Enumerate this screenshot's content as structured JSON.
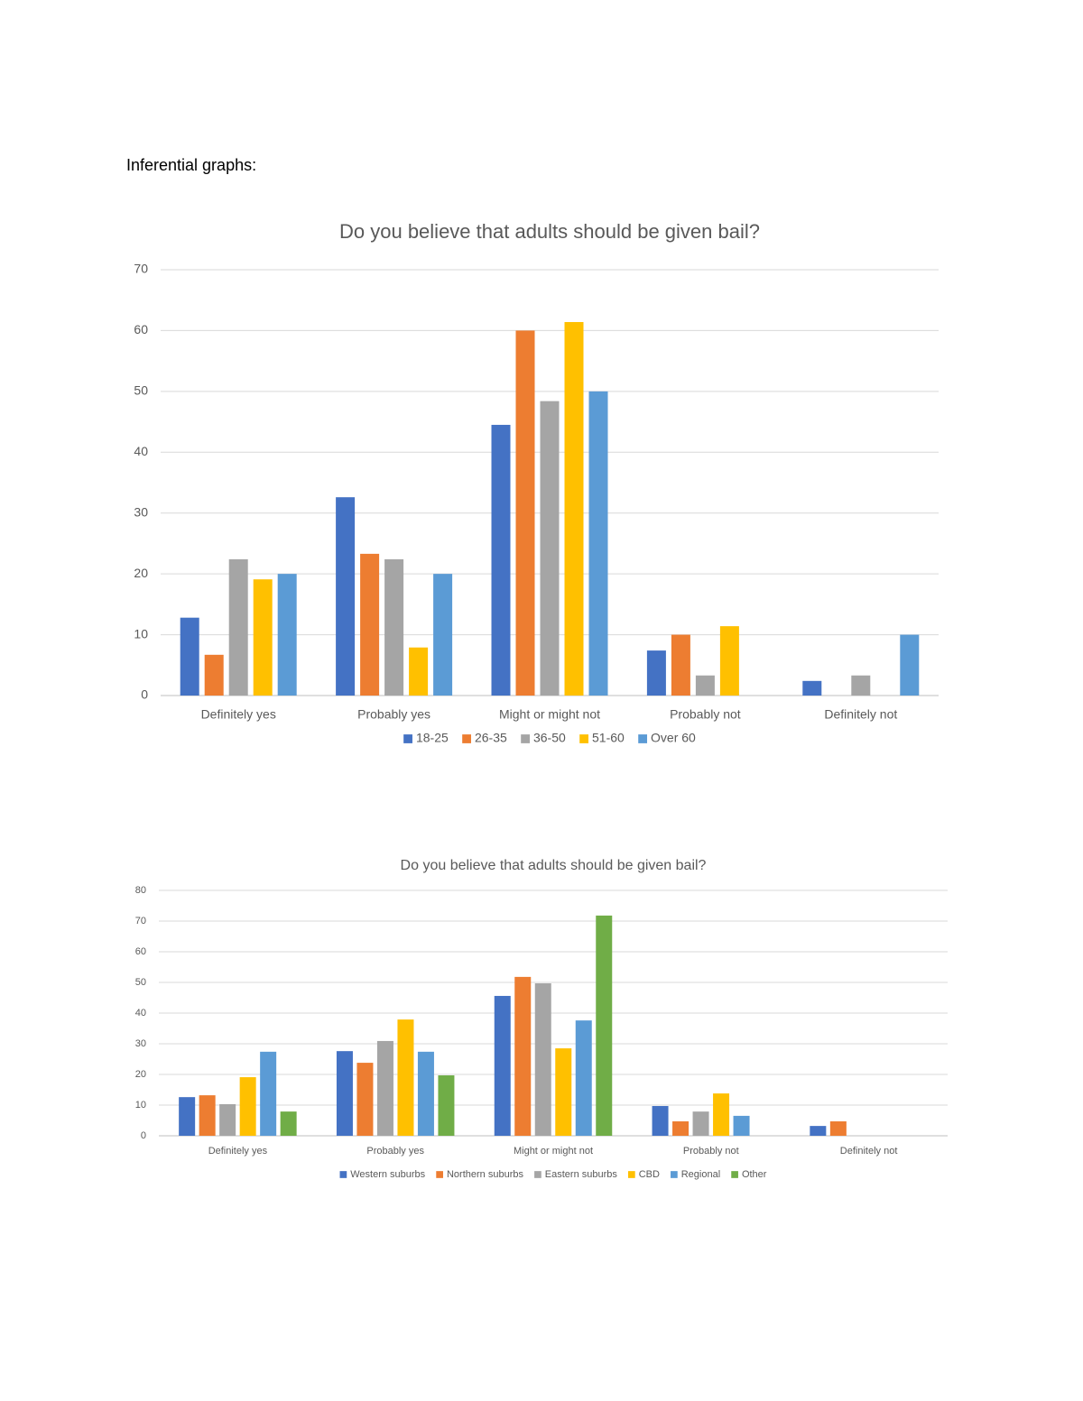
{
  "heading": "Inferential graphs:",
  "chart_data": [
    {
      "type": "bar",
      "title": "Do you believe that adults should be given bail?",
      "categories": [
        "Definitely yes",
        "Probably yes",
        "Might or might not",
        "Probably not",
        "Definitely not"
      ],
      "series": [
        {
          "name": "18-25",
          "color": "#4472c4",
          "values": [
            12.8,
            32.6,
            44.5,
            7.4,
            2.4
          ]
        },
        {
          "name": "26-35",
          "color": "#ed7d31",
          "values": [
            6.7,
            23.3,
            60,
            10,
            0
          ]
        },
        {
          "name": "36-50",
          "color": "#a5a5a5",
          "values": [
            22.4,
            22.4,
            48.4,
            3.3,
            3.3
          ]
        },
        {
          "name": "51-60",
          "color": "#ffc000",
          "values": [
            19.1,
            7.9,
            61.4,
            11.4,
            0
          ]
        },
        {
          "name": "Over 60",
          "color": "#5b9bd5",
          "values": [
            20,
            20,
            50,
            0,
            10
          ]
        }
      ],
      "ylim": [
        0,
        70
      ],
      "yticks": [
        0,
        10,
        20,
        30,
        40,
        50,
        60,
        70
      ],
      "grid": true,
      "legend": "bottom"
    },
    {
      "type": "bar",
      "title": "Do you believe that adults should be given bail?",
      "categories": [
        "Definitely yes",
        "Probably yes",
        "Might or might not",
        "Probably not",
        "Definitely not"
      ],
      "series": [
        {
          "name": "Western suburbs",
          "color": "#4472c4",
          "values": [
            12.6,
            27.6,
            45.6,
            9.7,
            3.2
          ]
        },
        {
          "name": "Northern suburbs",
          "color": "#ed7d31",
          "values": [
            13.2,
            23.8,
            51.8,
            4.7,
            4.7
          ]
        },
        {
          "name": "Eastern suburbs",
          "color": "#a5a5a5",
          "values": [
            10.3,
            30.9,
            49.7,
            7.9,
            0
          ]
        },
        {
          "name": "CBD",
          "color": "#ffc000",
          "values": [
            19.1,
            37.9,
            28.5,
            13.8,
            0
          ]
        },
        {
          "name": "Regional",
          "color": "#5b9bd5",
          "values": [
            27.4,
            27.4,
            37.6,
            6.5,
            0
          ]
        },
        {
          "name": "Other",
          "color": "#70ad47",
          "values": [
            7.9,
            19.7,
            71.8,
            0,
            0
          ]
        }
      ],
      "ylim": [
        0,
        80
      ],
      "yticks": [
        0,
        10,
        20,
        30,
        40,
        50,
        60,
        70,
        80
      ],
      "grid": true,
      "legend": "bottom"
    }
  ]
}
